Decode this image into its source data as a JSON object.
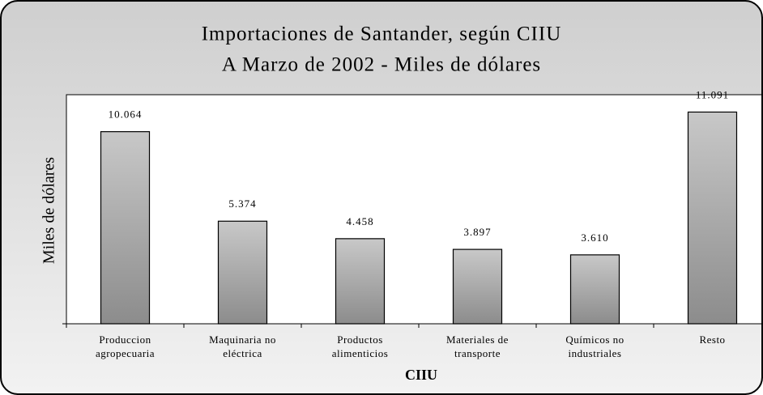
{
  "chart_data": {
    "type": "bar",
    "title": "Importaciones de Santander, según CIIU",
    "subtitle": "A Marzo de  2002 - Miles de dólares",
    "y_label": "Miles de dólares",
    "x_label": "CIIU",
    "categories": [
      "Produccion agropecuaria",
      "Maquinaria no eléctrica",
      "Productos alimenticios",
      "Materiales de transporte",
      "Químicos no industriales",
      "Resto"
    ],
    "values": [
      10064,
      5374,
      4458,
      3897,
      3610,
      11091
    ],
    "value_labels": [
      "10.064",
      "5.374",
      "4.458",
      "3.897",
      "3.610",
      "11.091"
    ],
    "color": "#a8a8a8",
    "ylim": [
      0,
      12000
    ]
  }
}
